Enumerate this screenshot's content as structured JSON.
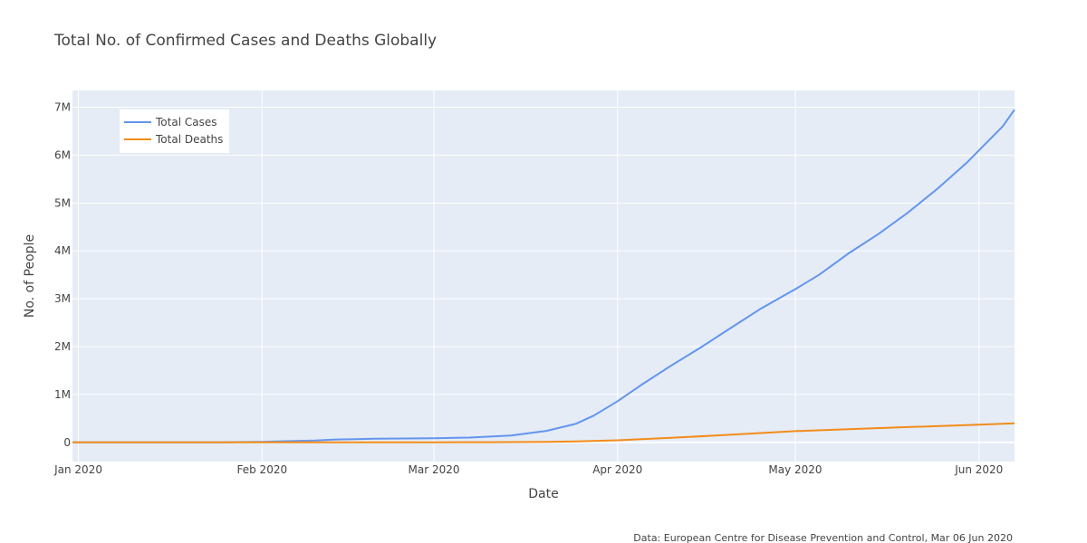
{
  "chart_data": {
    "type": "line",
    "title": "Total No. of Confirmed Cases and Deaths Globally",
    "xlabel": "Date",
    "ylabel": "No. of People",
    "x_range": [
      "2019-12-31",
      "2020-06-07"
    ],
    "ylim": [
      -400000,
      7350000
    ],
    "x_ticks": [
      {
        "date": "2020-01-01",
        "label": "Jan 2020"
      },
      {
        "date": "2020-02-01",
        "label": "Feb 2020"
      },
      {
        "date": "2020-03-01",
        "label": "Mar 2020"
      },
      {
        "date": "2020-04-01",
        "label": "Apr 2020"
      },
      {
        "date": "2020-05-01",
        "label": "May 2020"
      },
      {
        "date": "2020-06-01",
        "label": "Jun 2020"
      }
    ],
    "y_ticks": [
      {
        "value": 0,
        "label": "0"
      },
      {
        "value": 1000000,
        "label": "1M"
      },
      {
        "value": 2000000,
        "label": "2M"
      },
      {
        "value": 3000000,
        "label": "3M"
      },
      {
        "value": 4000000,
        "label": "4M"
      },
      {
        "value": 5000000,
        "label": "5M"
      },
      {
        "value": 6000000,
        "label": "6M"
      },
      {
        "value": 7000000,
        "label": "7M"
      }
    ],
    "grid": true,
    "legend_position": "top-left",
    "series": [
      {
        "name": "Total Cases",
        "color": "#6495ED",
        "points": [
          [
            "2019-12-31",
            27
          ],
          [
            "2020-01-10",
            59
          ],
          [
            "2020-01-20",
            282
          ],
          [
            "2020-01-25",
            1400
          ],
          [
            "2020-02-01",
            11900
          ],
          [
            "2020-02-05",
            24500
          ],
          [
            "2020-02-10",
            40500
          ],
          [
            "2020-02-13",
            60000
          ],
          [
            "2020-02-20",
            75700
          ],
          [
            "2020-03-01",
            87000
          ],
          [
            "2020-03-07",
            101800
          ],
          [
            "2020-03-14",
            145000
          ],
          [
            "2020-03-20",
            240000
          ],
          [
            "2020-03-25",
            390000
          ],
          [
            "2020-03-28",
            560000
          ],
          [
            "2020-04-01",
            860000
          ],
          [
            "2020-04-05",
            1200000
          ],
          [
            "2020-04-10",
            1600000
          ],
          [
            "2020-04-15",
            1980000
          ],
          [
            "2020-04-20",
            2380000
          ],
          [
            "2020-04-25",
            2780000
          ],
          [
            "2020-05-01",
            3200000
          ],
          [
            "2020-05-05",
            3500000
          ],
          [
            "2020-05-10",
            3950000
          ],
          [
            "2020-05-15",
            4350000
          ],
          [
            "2020-05-20",
            4800000
          ],
          [
            "2020-05-25",
            5300000
          ],
          [
            "2020-05-30",
            5850000
          ],
          [
            "2020-06-01",
            6100000
          ],
          [
            "2020-06-05",
            6600000
          ],
          [
            "2020-06-07",
            6950000
          ]
        ]
      },
      {
        "name": "Total Deaths",
        "color": "#F28C1A",
        "points": [
          [
            "2019-12-31",
            0
          ],
          [
            "2020-01-20",
            6
          ],
          [
            "2020-02-01",
            259
          ],
          [
            "2020-02-15",
            1500
          ],
          [
            "2020-03-01",
            2900
          ],
          [
            "2020-03-10",
            4300
          ],
          [
            "2020-03-20",
            11000
          ],
          [
            "2020-03-25",
            20000
          ],
          [
            "2020-04-01",
            45000
          ],
          [
            "2020-04-10",
            95000
          ],
          [
            "2020-04-20",
            160000
          ],
          [
            "2020-05-01",
            235000
          ],
          [
            "2020-05-10",
            275000
          ],
          [
            "2020-05-20",
            320000
          ],
          [
            "2020-06-01",
            370000
          ],
          [
            "2020-06-07",
            398000
          ]
        ]
      }
    ],
    "source_note": "Data: European Centre for Disease Prevention and Control, Mar 06 Jun 2020"
  }
}
